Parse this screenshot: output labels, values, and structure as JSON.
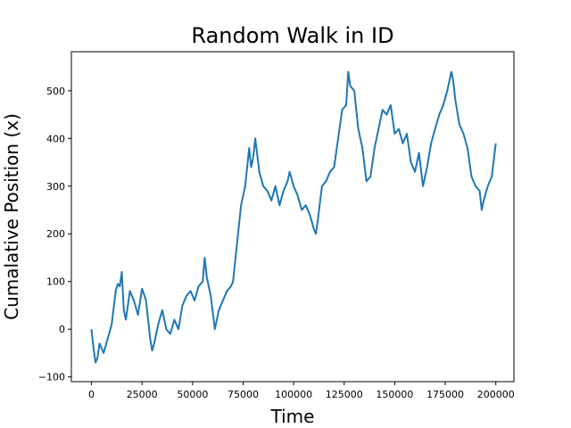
{
  "chart_data": {
    "type": "line",
    "title": "Random Walk in ID",
    "xlabel": "Time",
    "ylabel": "Cumalative Position (x)",
    "xlim": [
      -9950,
      208950
    ],
    "ylim": [
      -110,
      582
    ],
    "xticks": [
      0,
      25000,
      50000,
      75000,
      100000,
      125000,
      150000,
      175000,
      200000
    ],
    "xtick_labels": [
      "0",
      "25000",
      "50000",
      "75000",
      "100000",
      "125000",
      "150000",
      "175000",
      "200000"
    ],
    "yticks": [
      -100,
      0,
      100,
      200,
      300,
      400,
      500
    ],
    "ytick_labels": [
      "−100",
      "0",
      "100",
      "200",
      "300",
      "400",
      "500"
    ],
    "grid": false,
    "legend": "none",
    "series": [
      {
        "color": "#1f77b4",
        "x": [
          0,
          1000,
          2000,
          3000,
          4000,
          6000,
          8000,
          10000,
          12000,
          13000,
          14000,
          15000,
          16000,
          17000,
          19000,
          21000,
          23000,
          25000,
          27000,
          29000,
          30000,
          31000,
          33000,
          35000,
          37000,
          39000,
          41000,
          43000,
          45000,
          47000,
          49000,
          51000,
          53000,
          55000,
          56000,
          57000,
          59000,
          61000,
          63000,
          65000,
          67000,
          69000,
          70000,
          72000,
          74000,
          76000,
          78000,
          79000,
          80000,
          81000,
          83000,
          85000,
          87000,
          89000,
          91000,
          93000,
          95000,
          97000,
          98000,
          100000,
          102000,
          104000,
          106000,
          108000,
          110000,
          111000,
          112000,
          114000,
          116000,
          118000,
          120000,
          122000,
          124000,
          126000,
          127000,
          128000,
          130000,
          132000,
          134000,
          136000,
          138000,
          140000,
          142000,
          144000,
          146000,
          148000,
          150000,
          152000,
          154000,
          156000,
          158000,
          160000,
          162000,
          164000,
          166000,
          168000,
          170000,
          172000,
          174000,
          176000,
          178000,
          179000,
          180000,
          182000,
          184000,
          186000,
          188000,
          190000,
          192000,
          193000,
          194000,
          196000,
          198000,
          200000
        ],
        "y": [
          0,
          -40,
          -70,
          -60,
          -30,
          -50,
          -20,
          10,
          80,
          95,
          90,
          120,
          40,
          20,
          80,
          60,
          30,
          85,
          60,
          -20,
          -45,
          -30,
          10,
          40,
          0,
          -10,
          20,
          0,
          50,
          70,
          80,
          60,
          90,
          100,
          150,
          110,
          70,
          0,
          40,
          60,
          80,
          90,
          100,
          180,
          260,
          300,
          380,
          340,
          360,
          400,
          330,
          300,
          290,
          270,
          300,
          260,
          290,
          310,
          330,
          300,
          280,
          250,
          260,
          240,
          210,
          200,
          230,
          300,
          310,
          330,
          340,
          400,
          460,
          470,
          540,
          510,
          500,
          420,
          380,
          310,
          320,
          380,
          420,
          460,
          450,
          470,
          410,
          420,
          390,
          410,
          350,
          330,
          370,
          300,
          340,
          390,
          420,
          450,
          470,
          500,
          540,
          520,
          480,
          430,
          410,
          380,
          320,
          300,
          290,
          250,
          270,
          300,
          320,
          390
        ]
      }
    ]
  }
}
